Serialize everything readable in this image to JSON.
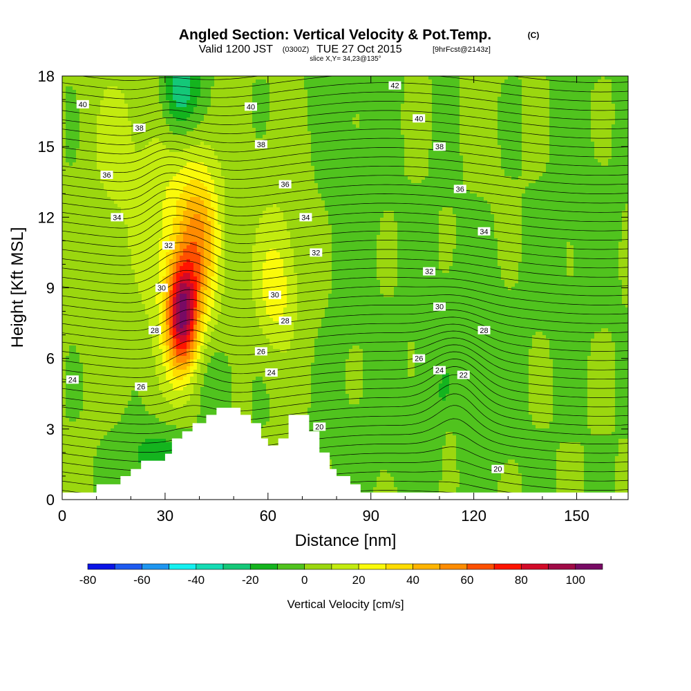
{
  "chart_data": {
    "type": "heatmap",
    "title": "Angled Section: Vertical Velocity & Pot.Temp.",
    "title_units": "(C)",
    "subtitle_valid": "Valid 1200 JST",
    "subtitle_utc": "(0300Z)",
    "subtitle_date": "TUE 27 Oct 2015",
    "subtitle_fcst": "[9hrFcst@2143z]",
    "subtitle_slice": "slice X,Y= 34,23@135°",
    "xlabel": "Distance [nm]",
    "ylabel": "Height [Kft MSL]",
    "xlim": [
      0,
      165
    ],
    "ylim": [
      0,
      18
    ],
    "x_ticks": [
      0,
      30,
      60,
      90,
      120,
      150
    ],
    "y_ticks": [
      0,
      3,
      6,
      9,
      12,
      15,
      18
    ],
    "terrain": [
      [
        0,
        0.3
      ],
      [
        10,
        0.3
      ],
      [
        10,
        0.65
      ],
      [
        17,
        0.65
      ],
      [
        17,
        1.0
      ],
      [
        20,
        1.0
      ],
      [
        20,
        1.3
      ],
      [
        23,
        1.3
      ],
      [
        23,
        1.65
      ],
      [
        30,
        1.65
      ],
      [
        30,
        1.95
      ],
      [
        32,
        1.95
      ],
      [
        32,
        2.6
      ],
      [
        35,
        2.6
      ],
      [
        35,
        2.9
      ],
      [
        38,
        2.9
      ],
      [
        38,
        3.25
      ],
      [
        42,
        3.25
      ],
      [
        42,
        3.6
      ],
      [
        45,
        3.6
      ],
      [
        45,
        3.9
      ],
      [
        52,
        3.9
      ],
      [
        52,
        3.6
      ],
      [
        55,
        3.6
      ],
      [
        55,
        3.25
      ],
      [
        58,
        3.25
      ],
      [
        58,
        2.6
      ],
      [
        60,
        2.6
      ],
      [
        60,
        2.3
      ],
      [
        63,
        2.3
      ],
      [
        63,
        2.6
      ],
      [
        66,
        2.6
      ],
      [
        66,
        3.6
      ],
      [
        72,
        3.6
      ],
      [
        72,
        2.9
      ],
      [
        75,
        2.9
      ],
      [
        75,
        2.0
      ],
      [
        78,
        2.0
      ],
      [
        78,
        1.3
      ],
      [
        80,
        1.3
      ],
      [
        80,
        1.0
      ],
      [
        84,
        1.0
      ],
      [
        84,
        0.65
      ],
      [
        87,
        0.65
      ],
      [
        87,
        0.3
      ],
      [
        165,
        0.3
      ]
    ],
    "colorbar": {
      "label": "Vertical Velocity [cm/s]",
      "tick_labels": [
        "-80",
        "-60",
        "-40",
        "-20",
        "0",
        "20",
        "40",
        "60",
        "80",
        "100"
      ],
      "tick_values": [
        -80,
        -60,
        -40,
        -20,
        0,
        20,
        40,
        60,
        80,
        100
      ],
      "bins": [
        -80,
        -70,
        -60,
        -50,
        -40,
        -30,
        -20,
        -10,
        0,
        10,
        20,
        30,
        40,
        50,
        60,
        70,
        80,
        90,
        100,
        110
      ],
      "colors": [
        "#0a14e6",
        "#1e5af0",
        "#1e96f0",
        "#14f0f0",
        "#14dcb4",
        "#14c878",
        "#14b41e",
        "#50c31e",
        "#9bd70f",
        "#c3eb0f",
        "#fafa0a",
        "#ffdc00",
        "#ffb400",
        "#ff8c00",
        "#ff5000",
        "#ff1400",
        "#d20a28",
        "#a00a46",
        "#780a64",
        "#501478"
      ]
    },
    "features": [
      {
        "x": 35,
        "y": 7.8,
        "sx": 3.2,
        "sy": 1.6,
        "value": 85
      },
      {
        "x": 40,
        "y": 11.0,
        "sx": 4.5,
        "sy": 2.3,
        "value": 40
      },
      {
        "x": 32,
        "y": 11.5,
        "sx": 7.5,
        "sy": 4.8,
        "value": 20
      },
      {
        "x": 15,
        "y": 15.0,
        "sx": 6.0,
        "sy": 3.0,
        "value": 12
      },
      {
        "x": 65,
        "y": 10.5,
        "sx": 8.0,
        "sy": 3.5,
        "value": 12
      },
      {
        "x": 62,
        "y": 8.8,
        "sx": 3.5,
        "sy": 1.5,
        "value": 18
      },
      {
        "x": 35,
        "y": 17.6,
        "sx": 4.0,
        "sy": 1.3,
        "value": -30
      },
      {
        "x": 33,
        "y": 16.0,
        "sx": 3.5,
        "sy": 1.5,
        "value": -12
      },
      {
        "x": 28,
        "y": 1.8,
        "sx": 7.0,
        "sy": 1.0,
        "value": -18
      },
      {
        "x": 45,
        "y": 5.0,
        "sx": 3.5,
        "sy": 1.2,
        "value": -10
      },
      {
        "x": 80,
        "y": 12.0,
        "sx": 9.0,
        "sy": 5.0,
        "value": -5
      },
      {
        "x": 120,
        "y": 7.5,
        "sx": 10.0,
        "sy": 5.0,
        "value": -4
      },
      {
        "x": 110,
        "y": 4.5,
        "sx": 5.0,
        "sy": 2.0,
        "value": -5
      },
      {
        "x": 150,
        "y": 12.0,
        "sx": 9.0,
        "sy": 4.0,
        "value": -3
      },
      {
        "x": 100,
        "y": 2.5,
        "sx": 15.0,
        "sy": 1.5,
        "value": -3
      },
      {
        "x": 8,
        "y": 6.5,
        "sx": 5.0,
        "sy": 3.0,
        "value": 3
      },
      {
        "x": 113,
        "y": 2.0,
        "sx": 1.5,
        "sy": 1.0,
        "value": 12
      },
      {
        "x": 125,
        "y": 14.0,
        "sx": 8.0,
        "sy": 3.0,
        "value": 3
      }
    ],
    "contour_labels": [
      {
        "text": "40",
        "x": 6,
        "y": 16.8
      },
      {
        "text": "40",
        "x": 55,
        "y": 16.7
      },
      {
        "text": "40",
        "x": 104,
        "y": 16.2
      },
      {
        "text": "42",
        "x": 97,
        "y": 17.6
      },
      {
        "text": "38",
        "x": 22.5,
        "y": 15.8
      },
      {
        "text": "38",
        "x": 58,
        "y": 15.1
      },
      {
        "text": "38",
        "x": 110,
        "y": 15.0
      },
      {
        "text": "36",
        "x": 13,
        "y": 13.8
      },
      {
        "text": "36",
        "x": 65,
        "y": 13.4
      },
      {
        "text": "36",
        "x": 116,
        "y": 13.2
      },
      {
        "text": "34",
        "x": 16,
        "y": 12.0
      },
      {
        "text": "34",
        "x": 71,
        "y": 12.0
      },
      {
        "text": "34",
        "x": 123,
        "y": 11.4
      },
      {
        "text": "32",
        "x": 31,
        "y": 10.8
      },
      {
        "text": "32",
        "x": 74,
        "y": 10.5
      },
      {
        "text": "32",
        "x": 107,
        "y": 9.7
      },
      {
        "text": "30",
        "x": 29,
        "y": 9.0
      },
      {
        "text": "30",
        "x": 62,
        "y": 8.7
      },
      {
        "text": "30",
        "x": 110,
        "y": 8.2
      },
      {
        "text": "28",
        "x": 27,
        "y": 7.2
      },
      {
        "text": "28",
        "x": 65,
        "y": 7.6
      },
      {
        "text": "28",
        "x": 123,
        "y": 7.2
      },
      {
        "text": "26",
        "x": 58,
        "y": 6.3
      },
      {
        "text": "26",
        "x": 104,
        "y": 6.0
      },
      {
        "text": "26",
        "x": 23,
        "y": 4.8
      },
      {
        "text": "24",
        "x": 3,
        "y": 5.1
      },
      {
        "text": "24",
        "x": 61,
        "y": 5.4
      },
      {
        "text": "24",
        "x": 110,
        "y": 5.5
      },
      {
        "text": "22",
        "x": 117,
        "y": 5.3
      },
      {
        "text": "20",
        "x": 75,
        "y": 3.1
      },
      {
        "text": "20",
        "x": 127,
        "y": 1.3
      }
    ]
  }
}
